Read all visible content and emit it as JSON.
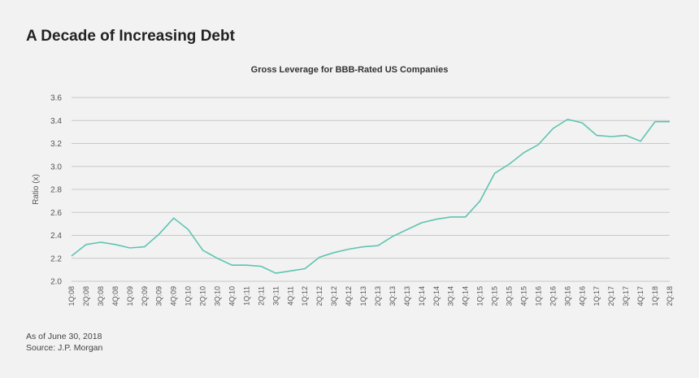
{
  "page": {
    "title": "A Decade of Increasing Debt",
    "note": "As of June 30, 2018",
    "source": "Source: J.P. Morgan"
  },
  "colors": {
    "line": "#5ec4b0",
    "grid": "#c8c8c8",
    "background": "#f2f2f2"
  },
  "chart_data": {
    "type": "line",
    "title": "Gross Leverage for BBB-Rated US Companies",
    "xlabel": "",
    "ylabel": "Ratio (x)",
    "ylim": [
      2.0,
      3.6
    ],
    "yticks": [
      2.0,
      2.2,
      2.4,
      2.6,
      2.8,
      3.0,
      3.2,
      3.4,
      3.6
    ],
    "ytick_labels": [
      "2.0",
      "2.2",
      "2.4",
      "2.6",
      "2.8",
      "3.0",
      "3.2",
      "3.4",
      "3.6"
    ],
    "grid": true,
    "categories": [
      "1Q:08",
      "2Q:08",
      "3Q:08",
      "4Q:08",
      "1Q:09",
      "2Q:09",
      "3Q:09",
      "4Q:09",
      "1Q:10",
      "2Q:10",
      "3Q:10",
      "4Q:10",
      "1Q:11",
      "2Q:11",
      "3Q:11",
      "4Q:11",
      "1Q:12",
      "2Q:12",
      "3Q:12",
      "4Q:12",
      "1Q:13",
      "2Q:13",
      "3Q:13",
      "4Q:13",
      "1Q:14",
      "2Q:14",
      "3Q:14",
      "4Q:14",
      "1Q:15",
      "2Q:15",
      "3Q:15",
      "4Q:15",
      "1Q:16",
      "2Q:16",
      "3Q:16",
      "4Q:16",
      "1Q:17",
      "2Q:17",
      "3Q:17",
      "4Q:17",
      "1Q:18",
      "2Q:18"
    ],
    "series": [
      {
        "name": "Gross Leverage",
        "values": [
          2.22,
          2.32,
          2.34,
          2.32,
          2.29,
          2.3,
          2.41,
          2.55,
          2.45,
          2.27,
          2.2,
          2.14,
          2.14,
          2.13,
          2.07,
          2.09,
          2.11,
          2.21,
          2.25,
          2.28,
          2.3,
          2.31,
          2.39,
          2.45,
          2.51,
          2.54,
          2.56,
          2.56,
          2.7,
          2.94,
          3.02,
          3.12,
          3.19,
          3.33,
          3.41,
          3.38,
          3.27,
          3.26,
          3.27,
          3.22,
          3.39,
          3.39
        ]
      }
    ]
  }
}
